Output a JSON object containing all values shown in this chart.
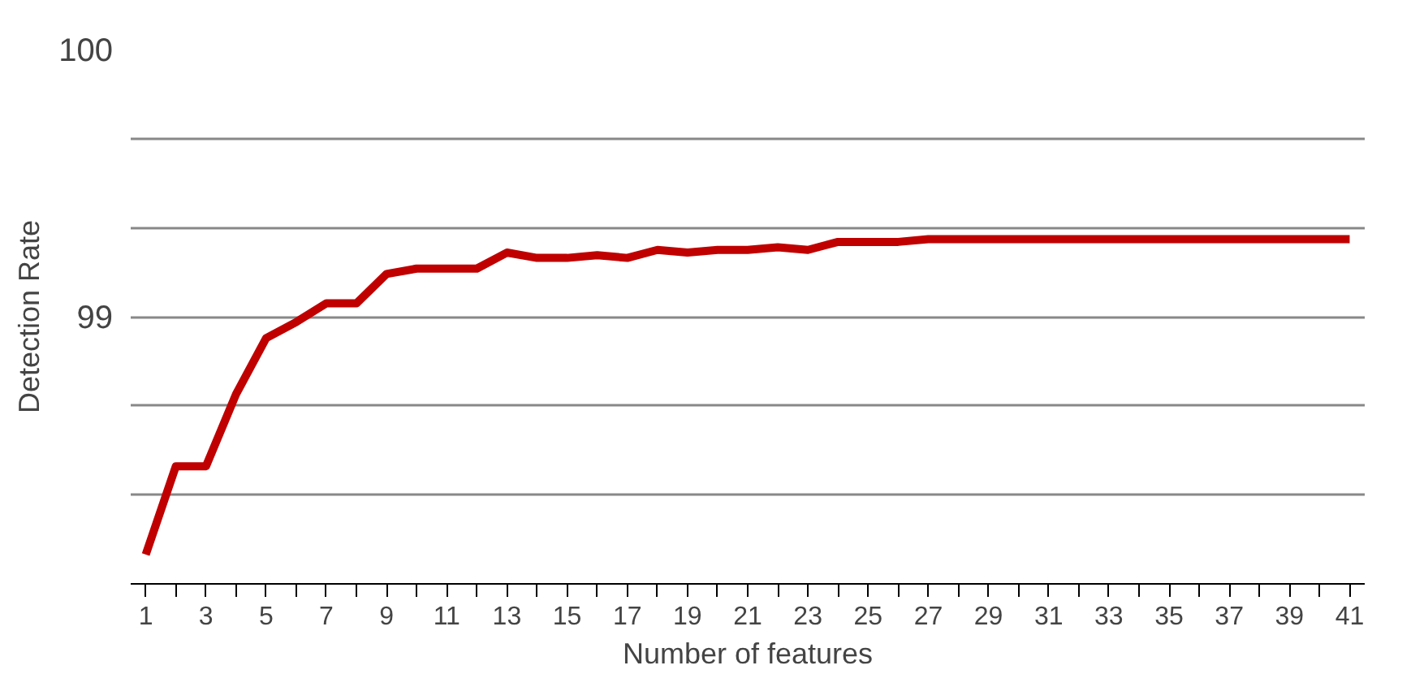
{
  "chart_data": {
    "type": "line",
    "xlabel": "Number of features",
    "ylabel": "Detection Rate",
    "x": [
      1,
      2,
      3,
      4,
      5,
      6,
      7,
      8,
      9,
      10,
      11,
      12,
      13,
      14,
      15,
      16,
      17,
      18,
      19,
      20,
      21,
      22,
      23,
      24,
      25,
      26,
      27,
      28,
      29,
      30,
      31,
      32,
      33,
      34,
      35,
      36,
      37,
      38,
      39,
      40,
      41
    ],
    "xlim": [
      0.5,
      41.5
    ],
    "xticks": [
      1,
      {
        "value": 2,
        "label": null
      },
      3,
      {
        "value": 4,
        "label": null
      },
      5,
      {
        "value": 6,
        "label": null
      },
      7,
      {
        "value": 8,
        "label": null
      },
      9,
      {
        "value": 10,
        "label": null
      },
      11,
      {
        "value": 12,
        "label": null
      },
      13,
      {
        "value": 14,
        "label": null
      },
      15,
      {
        "value": 16,
        "label": null
      },
      17,
      {
        "value": 18,
        "label": null
      },
      19,
      {
        "value": 20,
        "label": null
      },
      21,
      {
        "value": 22,
        "label": null
      },
      23,
      {
        "value": 24,
        "label": null
      },
      25,
      {
        "value": 26,
        "label": null
      },
      27,
      {
        "value": 28,
        "label": null
      },
      29,
      {
        "value": 30,
        "label": null
      },
      31,
      {
        "value": 32,
        "label": null
      },
      33,
      {
        "value": 34,
        "label": null
      },
      35,
      {
        "value": 36,
        "label": null
      },
      37,
      {
        "value": 38,
        "label": null
      },
      39,
      {
        "value": 40,
        "label": null
      },
      41
    ],
    "series": [
      {
        "color": "#c00000",
        "values": [
          98.11,
          98.44,
          98.44,
          98.71,
          98.92,
          98.98,
          99.05,
          99.05,
          99.16,
          99.18,
          99.18,
          99.18,
          99.24,
          99.22,
          99.22,
          99.23,
          99.22,
          99.25,
          99.24,
          99.25,
          99.25,
          99.26,
          99.25,
          99.28,
          99.28,
          99.28,
          99.29,
          99.29,
          99.29,
          99.29,
          99.29,
          99.29,
          99.29,
          99.29,
          99.29,
          99.29,
          99.29,
          99.29,
          99.29,
          99.29,
          99.29
        ]
      }
    ],
    "ylim": [
      98,
      100
    ],
    "yticks": [
      {
        "value": 98,
        "label": null
      },
      {
        "value": 98.333,
        "label": null
      },
      {
        "value": 98.667,
        "label": null
      },
      99,
      {
        "value": 99.333,
        "label": null
      },
      {
        "value": 99.667,
        "label": null
      },
      100
    ],
    "grid": "y",
    "marker": "none",
    "line_style": "solid"
  }
}
